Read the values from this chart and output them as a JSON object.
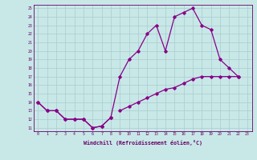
{
  "bg_color": "#c8e8e8",
  "grid_color": "#aacccc",
  "line_color": "#880088",
  "xlabel": "Windchill (Refroidissement éolien,°C)",
  "xlim_min": -0.5,
  "xlim_max": 23.5,
  "ylim_min": 10.6,
  "ylim_max": 25.4,
  "xticks": [
    0,
    1,
    2,
    3,
    4,
    5,
    6,
    7,
    8,
    9,
    10,
    11,
    12,
    13,
    14,
    15,
    16,
    17,
    18,
    19,
    20,
    21,
    22,
    23
  ],
  "yticks": [
    11,
    12,
    13,
    14,
    15,
    16,
    17,
    18,
    19,
    20,
    21,
    22,
    23,
    24,
    25
  ],
  "curve1_x": [
    0,
    1,
    2,
    3,
    4,
    5,
    6,
    7,
    8,
    9,
    10,
    11,
    12,
    13,
    14,
    15,
    16,
    17,
    18,
    19,
    20,
    21,
    22
  ],
  "curve1_y": [
    14,
    13,
    13,
    12,
    12,
    12,
    11,
    11.2,
    12.2,
    17,
    19,
    20,
    22,
    23,
    20,
    24,
    24.5,
    25,
    23,
    22.5,
    19,
    18,
    17
  ],
  "curve2_x": [
    0,
    1,
    2,
    3,
    4,
    5,
    6,
    7,
    8
  ],
  "curve2_y": [
    14,
    13,
    13,
    12,
    12,
    12,
    11,
    11.2,
    12.2
  ],
  "curve3_x": [
    9,
    10,
    11,
    12,
    13,
    14,
    15,
    16,
    17,
    18,
    19,
    20,
    21,
    22
  ],
  "curve3_y": [
    13,
    13.5,
    14,
    14.5,
    15,
    15.5,
    15.7,
    16.2,
    16.7,
    17,
    17,
    17,
    17,
    17
  ]
}
